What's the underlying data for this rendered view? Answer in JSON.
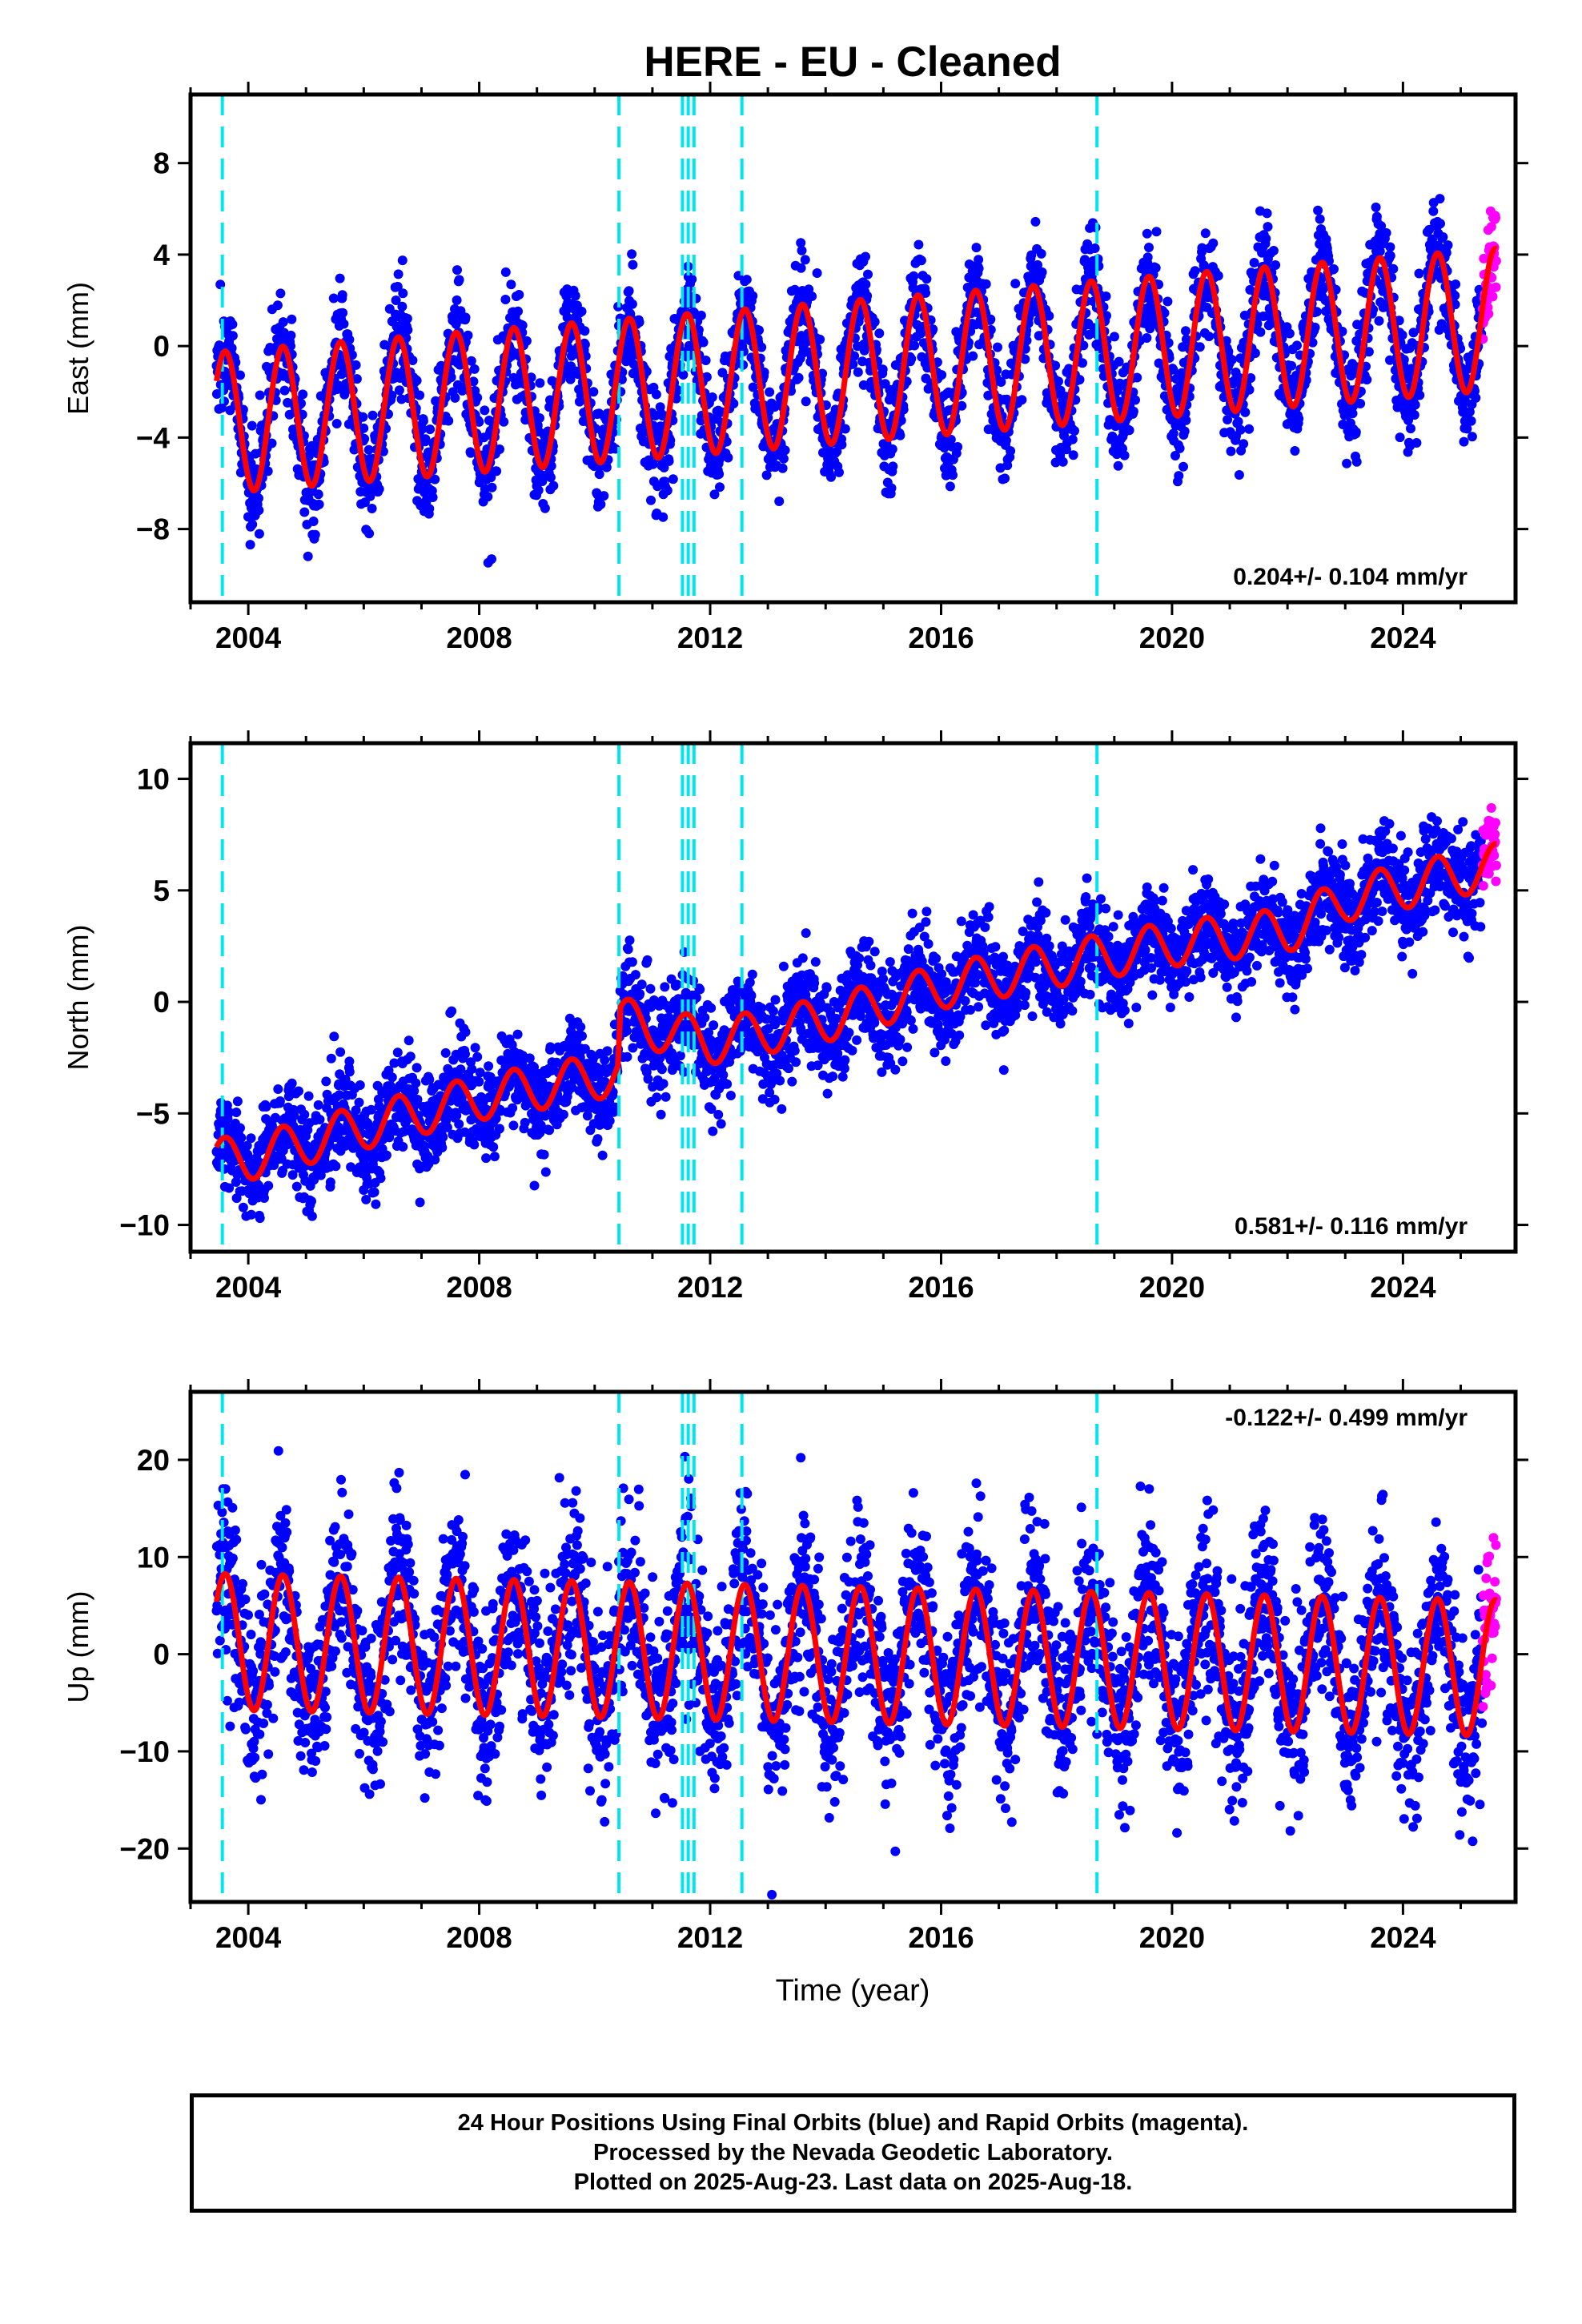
{
  "figure": {
    "title": "HERE  - EU - Cleaned",
    "xlabel": "Time (year)",
    "footer": [
      "24 Hour Positions Using Final Orbits (blue) and Rapid Orbits (magenta).",
      "Processed by the Nevada Geodetic Laboratory.",
      "Plotted on 2025-Aug-23. Last data on 2025-Aug-18."
    ]
  },
  "colors": {
    "final_orbits": "#0000ff",
    "rapid_orbits": "#ff00ff",
    "model_fit": "#ff0000",
    "events": "#00e5ee",
    "frame": "#000000"
  },
  "chart_data": [
    {
      "type": "scatter",
      "component": "east",
      "ylabel": "East (mm)",
      "rate_label": "0.204+/- 0.104 mm/yr",
      "rate_position": "bottom-right",
      "x_ticks": [
        "2004",
        "2008",
        "2012",
        "2016",
        "2020",
        "2024"
      ],
      "y_ticks": [
        "8",
        "4",
        "0",
        "−4",
        "−8"
      ],
      "y_tick_values": [
        8,
        4,
        0,
        -4,
        -8
      ],
      "xlim": [
        2003.0,
        2025.95
      ],
      "ylim": [
        -11.2,
        11.0
      ],
      "trend_mm_per_yr": 0.204,
      "seasonal_amplitude_mm": 3.1,
      "offset_mm": -1.2,
      "scatter_sd_mm": 1.2,
      "x_start": 2003.45,
      "x_end": 2025.62,
      "rapid_start": 2025.38
    },
    {
      "type": "scatter",
      "component": "north",
      "ylabel": "North (mm)",
      "rate_label": "0.581+/- 0.116 mm/yr",
      "rate_position": "bottom-right",
      "x_ticks": [
        "2004",
        "2008",
        "2012",
        "2016",
        "2020",
        "2024"
      ],
      "y_ticks": [
        "10",
        "5",
        "0",
        "−5",
        "−10"
      ],
      "y_tick_values": [
        10,
        5,
        0,
        -5,
        -10
      ],
      "xlim": [
        2003.0,
        2025.95
      ],
      "ylim": [
        -11.2,
        11.6
      ],
      "trend_mm_per_yr": 0.581,
      "seasonal_amplitude_mm": 1.0,
      "offset_mm": 0.0,
      "scatter_sd_mm": 1.1,
      "x_start": 2003.45,
      "x_end": 2025.62,
      "rapid_start": 2025.38,
      "fit_knots": [
        [
          2003.45,
          -7.1
        ],
        [
          2004.0,
          -7.0
        ],
        [
          2006.0,
          -5.6
        ],
        [
          2008.0,
          -4.3
        ],
        [
          2010.4,
          -3.2
        ],
        [
          2010.45,
          -0.8
        ],
        [
          2012.0,
          -1.8
        ],
        [
          2014.0,
          -0.8
        ],
        [
          2016.0,
          0.7
        ],
        [
          2018.7,
          2.0
        ],
        [
          2020.0,
          2.6
        ],
        [
          2022.0,
          3.2
        ],
        [
          2023.0,
          4.6
        ],
        [
          2025.62,
          6.1
        ]
      ]
    },
    {
      "type": "scatter",
      "component": "up",
      "ylabel": "Up (mm)",
      "rate_label": "-0.122+/- 0.499 mm/yr",
      "rate_position": "top-right",
      "x_ticks": [
        "2004",
        "2008",
        "2012",
        "2016",
        "2020",
        "2024"
      ],
      "y_ticks": [
        "20",
        "10",
        "0",
        "−10",
        "−20"
      ],
      "y_tick_values": [
        20,
        10,
        0,
        -10,
        -20
      ],
      "xlim": [
        2003.0,
        2025.95
      ],
      "ylim": [
        -25.5,
        27.0
      ],
      "trend_mm_per_yr": -0.122,
      "seasonal_amplitude_mm": 7.0,
      "offset_mm": 0.0,
      "scatter_sd_mm": 4.6,
      "x_start": 2003.45,
      "x_end": 2025.62,
      "rapid_start": 2025.38
    }
  ],
  "event_lines_x": [
    2003.55,
    2010.42,
    2011.52,
    2011.62,
    2011.72,
    2012.55,
    2018.7
  ]
}
